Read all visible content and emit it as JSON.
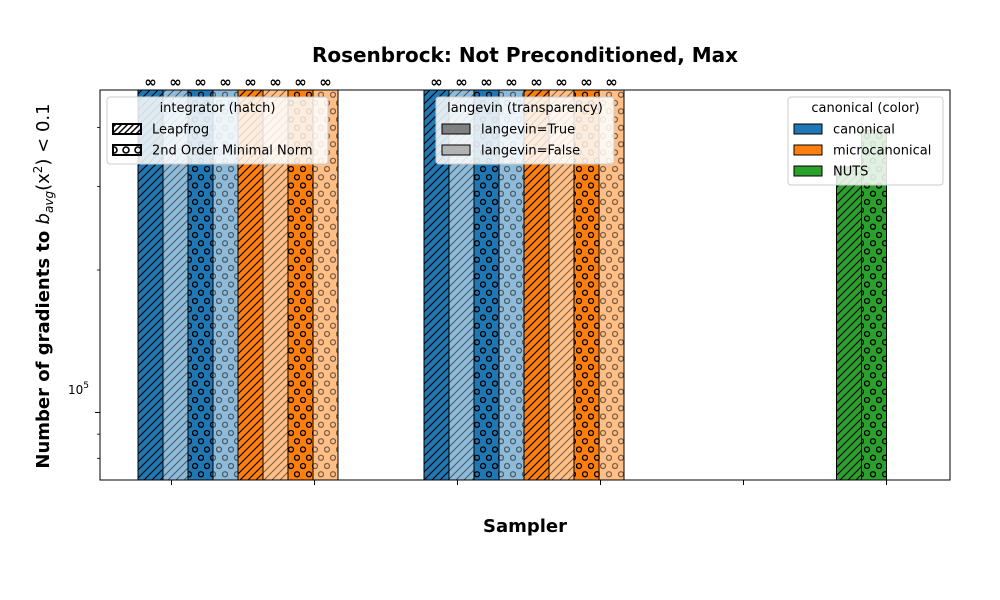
{
  "chart_data": {
    "type": "bar",
    "title": "Rosenbrock: Not Preconditioned, Max",
    "xlabel": "Sampler",
    "ylabel_main": "Number of gradients to ",
    "ylabel_math": "b",
    "ylabel_sub": "avg",
    "ylabel_tail": "(x",
    "ylabel_sup": "2",
    "ylabel_end": ") < 0.1",
    "y_scale": "log",
    "ylim": [
      72000,
      480000
    ],
    "y_tick_major": [
      {
        "value": 100000,
        "base": "10",
        "exp": "5"
      }
    ],
    "y_minor_ticks": [
      80000,
      90000,
      200000,
      300000,
      400000
    ],
    "infinity_label": "∞",
    "colors": {
      "canonical": "#1f77b4",
      "microcanonical": "#ff7f0e",
      "NUTS": "#2ca02c"
    },
    "bars": [
      {
        "group": 0,
        "canonical": "canonical",
        "langevin": true,
        "integrator": "Leapfrog",
        "value": null,
        "infinite": true
      },
      {
        "group": 0,
        "canonical": "canonical",
        "langevin": false,
        "integrator": "Leapfrog",
        "value": null,
        "infinite": true
      },
      {
        "group": 0,
        "canonical": "canonical",
        "langevin": true,
        "integrator": "2nd Order Minimal Norm",
        "value": null,
        "infinite": true
      },
      {
        "group": 0,
        "canonical": "canonical",
        "langevin": false,
        "integrator": "2nd Order Minimal Norm",
        "value": null,
        "infinite": true
      },
      {
        "group": 0,
        "canonical": "microcanonical",
        "langevin": true,
        "integrator": "Leapfrog",
        "value": null,
        "infinite": true
      },
      {
        "group": 0,
        "canonical": "microcanonical",
        "langevin": false,
        "integrator": "Leapfrog",
        "value": null,
        "infinite": true
      },
      {
        "group": 0,
        "canonical": "microcanonical",
        "langevin": true,
        "integrator": "2nd Order Minimal Norm",
        "value": null,
        "infinite": true
      },
      {
        "group": 0,
        "canonical": "microcanonical",
        "langevin": false,
        "integrator": "2nd Order Minimal Norm",
        "value": null,
        "infinite": true
      },
      {
        "group": 2,
        "canonical": "canonical",
        "langevin": true,
        "integrator": "Leapfrog",
        "value": null,
        "infinite": true
      },
      {
        "group": 2,
        "canonical": "canonical",
        "langevin": false,
        "integrator": "Leapfrog",
        "value": null,
        "infinite": true
      },
      {
        "group": 2,
        "canonical": "canonical",
        "langevin": true,
        "integrator": "2nd Order Minimal Norm",
        "value": null,
        "infinite": true
      },
      {
        "group": 2,
        "canonical": "canonical",
        "langevin": false,
        "integrator": "2nd Order Minimal Norm",
        "value": null,
        "infinite": true
      },
      {
        "group": 2,
        "canonical": "microcanonical",
        "langevin": true,
        "integrator": "Leapfrog",
        "value": null,
        "infinite": true
      },
      {
        "group": 2,
        "canonical": "microcanonical",
        "langevin": false,
        "integrator": "Leapfrog",
        "value": null,
        "infinite": true
      },
      {
        "group": 2,
        "canonical": "microcanonical",
        "langevin": true,
        "integrator": "2nd Order Minimal Norm",
        "value": null,
        "infinite": true
      },
      {
        "group": 2,
        "canonical": "microcanonical",
        "langevin": false,
        "integrator": "2nd Order Minimal Norm",
        "value": null,
        "infinite": true
      },
      {
        "group": 5,
        "canonical": "NUTS",
        "langevin": true,
        "integrator": "Leapfrog",
        "value": 330000,
        "infinite": false
      },
      {
        "group": 5,
        "canonical": "NUTS",
        "langevin": true,
        "integrator": "2nd Order Minimal Norm",
        "value": 395000,
        "infinite": false
      }
    ],
    "legends": [
      {
        "title": "integrator (hatch)",
        "position": "upper-left",
        "entries": [
          {
            "label": "Leapfrog",
            "hatch": "diag",
            "fill": "none"
          },
          {
            "label": "2nd Order Minimal Norm",
            "hatch": "circle",
            "fill": "none"
          }
        ]
      },
      {
        "title": "langevin (transparency)",
        "position": "upper-center",
        "entries": [
          {
            "label": "langevin=True",
            "hatch": "none",
            "fill": "#808080"
          },
          {
            "label": "langevin=False",
            "hatch": "none",
            "fill": "#b3b3b3"
          }
        ]
      },
      {
        "title": "canonical (color)",
        "position": "upper-right",
        "entries": [
          {
            "label": "canonical",
            "hatch": "none",
            "fill": "#1f77b4"
          },
          {
            "label": "microcanonical",
            "hatch": "none",
            "fill": "#ff7f0e"
          },
          {
            "label": "NUTS",
            "hatch": "none",
            "fill": "#2ca02c"
          }
        ]
      }
    ]
  }
}
